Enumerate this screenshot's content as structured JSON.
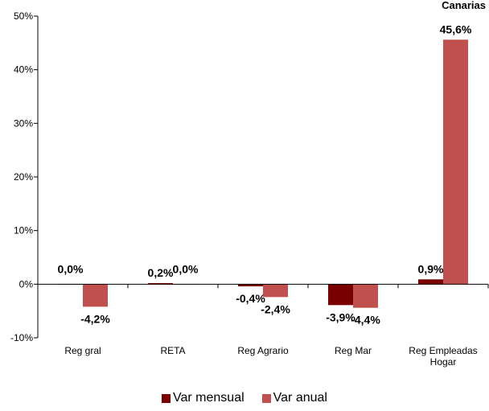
{
  "chart_data": {
    "type": "bar",
    "title": "Canarias",
    "categories": [
      "Reg gral",
      "RETA",
      "Reg Agrario",
      "Reg Mar",
      [
        "Reg Empleadas",
        "Hogar"
      ]
    ],
    "series": [
      {
        "name": "Var mensual",
        "color": "#7a0000",
        "values": [
          0.0,
          0.2,
          -0.4,
          -3.9,
          0.9
        ],
        "labels": [
          "0,0%",
          "0,2%",
          "-0,4%",
          "-3,9%",
          "0,9%"
        ]
      },
      {
        "name": "Var anual",
        "color": "#c0504d",
        "values": [
          -4.2,
          0.0,
          -2.4,
          -4.4,
          45.6
        ],
        "labels": [
          "-4,2%",
          "0,0%",
          "-2,4%",
          "-4,4%",
          "45,6%"
        ]
      }
    ],
    "ylim": [
      -10,
      50
    ],
    "yticks": [
      -10,
      0,
      10,
      20,
      30,
      40,
      50
    ],
    "ytick_labels": [
      "-10%",
      "0%",
      "10%",
      "20%",
      "30%",
      "40%",
      "50%"
    ],
    "grid": false,
    "legend_position": "bottom"
  }
}
